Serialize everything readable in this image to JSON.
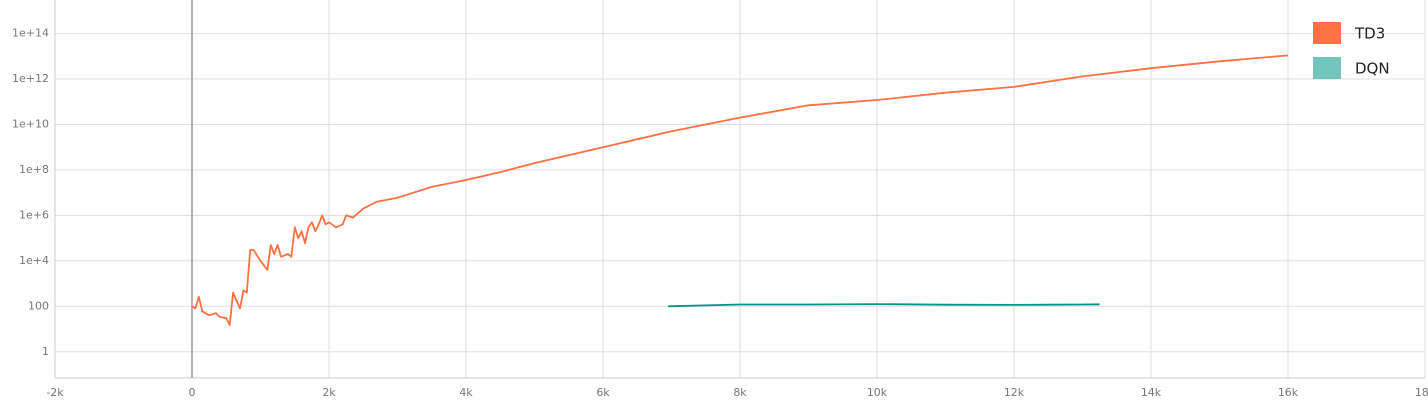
{
  "chart_data": {
    "type": "line",
    "yscale": "log",
    "grid": true,
    "legend": "upper right",
    "xlim": [
      -2000,
      18000
    ],
    "xticks": [
      {
        "value": -2000,
        "label": "-2k"
      },
      0,
      {
        "value": 2000,
        "label": "2k"
      },
      {
        "value": 4000,
        "label": "4k"
      },
      {
        "value": 6000,
        "label": "6k"
      },
      {
        "value": 8000,
        "label": "8k"
      },
      {
        "value": 10000,
        "label": "10k"
      },
      {
        "value": 12000,
        "label": "12k"
      },
      {
        "value": 14000,
        "label": "14k"
      },
      {
        "value": 16000,
        "label": "16k"
      },
      {
        "value": 18000,
        "label": "18k"
      }
    ],
    "ylim": [
      0.07,
      3000000000000000.0
    ],
    "yticks": [
      1,
      100,
      {
        "value": 10000,
        "label": "1e+4"
      },
      {
        "value": 1000000,
        "label": "1e+6"
      },
      {
        "value": 100000000,
        "label": "1e+8"
      },
      {
        "value": 10000000000,
        "label": "1e+10"
      },
      {
        "value": 1000000000000,
        "label": "1e+12"
      },
      {
        "value": 100000000000000,
        "label": "1e+14"
      }
    ],
    "series": [
      {
        "name": "TD3",
        "color": "#ff7043",
        "x": [
          0,
          50,
          100,
          150,
          250,
          350,
          400,
          500,
          550,
          600,
          700,
          750,
          800,
          850,
          900,
          1000,
          1100,
          1150,
          1200,
          1250,
          1300,
          1400,
          1450,
          1500,
          1550,
          1600,
          1650,
          1700,
          1750,
          1800,
          1850,
          1900,
          1950,
          2000,
          2100,
          2200,
          2250,
          2350,
          2500,
          2700,
          3000,
          3500,
          4000,
          4500,
          5000,
          6000,
          7000,
          8000,
          9000,
          10000,
          11000,
          12000,
          13000,
          14000,
          15000,
          16000
        ],
        "values": [
          100,
          80,
          260,
          60,
          40,
          50,
          35,
          30,
          15,
          400,
          80,
          500,
          400,
          30000,
          30000,
          10000,
          4000,
          50000,
          20000,
          50000,
          15000,
          20000,
          15000,
          300000,
          100000,
          200000,
          60000,
          300000,
          500000,
          200000,
          400000,
          1000000,
          400000,
          500000,
          300000,
          400000,
          1000000,
          800000,
          2000000,
          4000000,
          6000000,
          18000000,
          36000000,
          80000000,
          200000000,
          1000000000,
          5000000000,
          20000000000,
          70000000000,
          120000000000,
          250000000000,
          450000000000,
          1300000000000,
          3000000000000,
          6000000000000,
          11000000000000
        ]
      },
      {
        "name": "DQN",
        "color": "#009688",
        "x": [
          6950,
          8000,
          9000,
          10000,
          11000,
          12000,
          12500,
          13000,
          13250
        ],
        "values": [
          100,
          120,
          120,
          125,
          118,
          115,
          118,
          120,
          122
        ]
      }
    ]
  }
}
